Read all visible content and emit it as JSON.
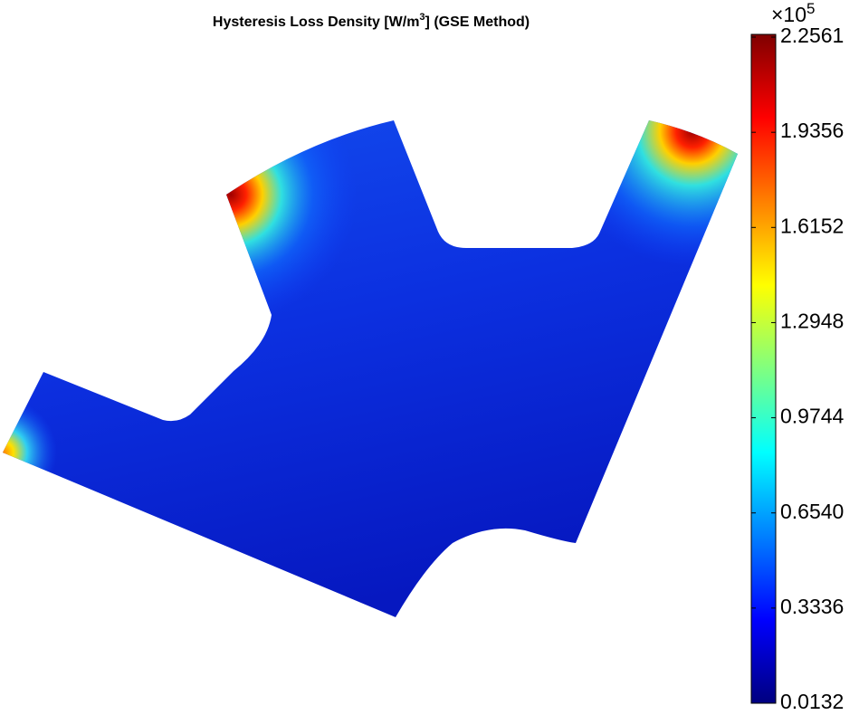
{
  "chart_data": {
    "type": "field",
    "title": [
      "Hysteresis Loss Density [W/m",
      "3",
      "] (GSE Method)"
    ],
    "colormap": "jet",
    "zlim": [
      0.0132,
      2.2561
    ],
    "zticks": [
      0.0132,
      0.3336,
      {
        "value": 0.654,
        "label": "0.6540"
      },
      0.9744,
      1.2948,
      1.6152,
      1.9356,
      2.2561
    ],
    "multiplier": [
      "×10",
      5
    ]
  }
}
